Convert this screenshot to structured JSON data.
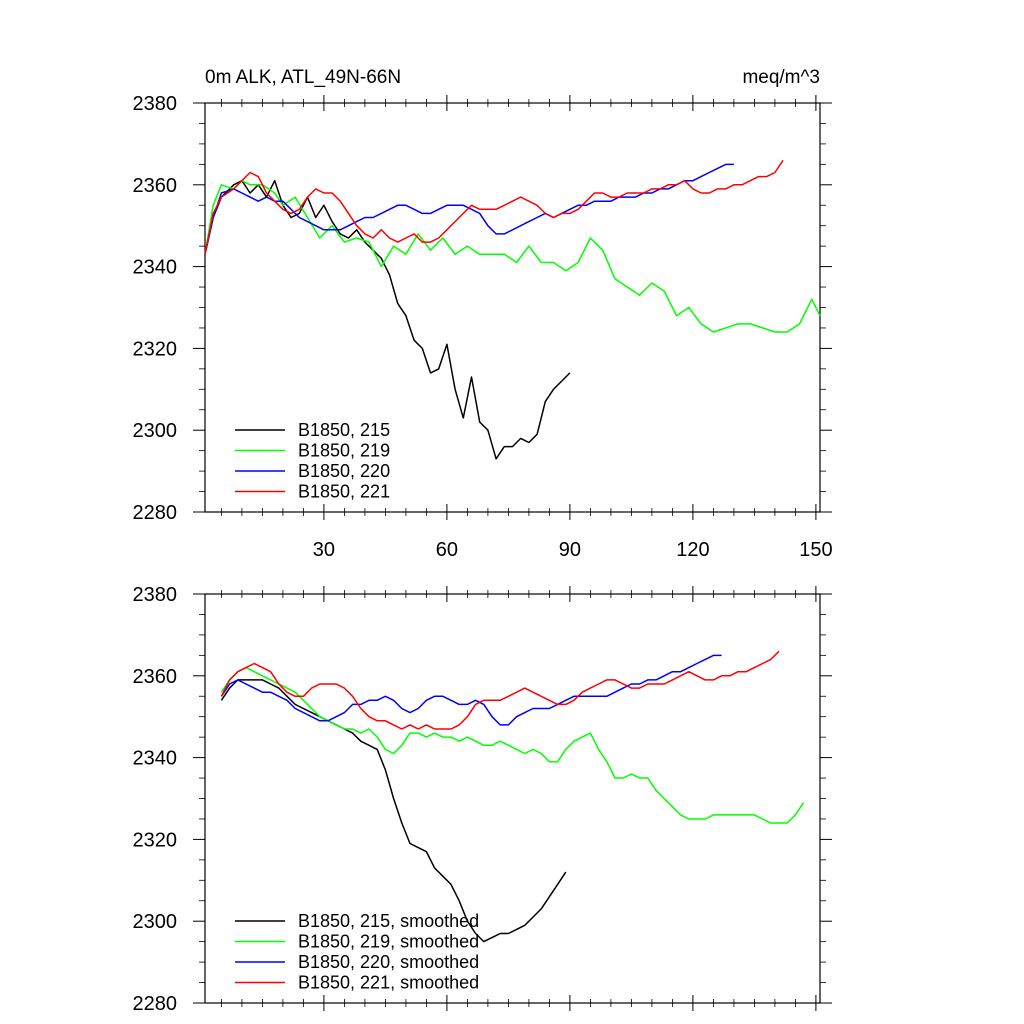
{
  "chart_data": [
    {
      "type": "line",
      "title_left": "0m ALK, ATL_49N-66N",
      "title_right": "meq/m^3",
      "xlim": [
        1,
        151
      ],
      "ylim": [
        2280,
        2380
      ],
      "xticks": [
        30,
        60,
        90,
        120,
        150
      ],
      "xtick_labels": [
        "30",
        "60",
        "90",
        "120",
        "150"
      ],
      "yticks": [
        2280,
        2300,
        2320,
        2340,
        2360,
        2380
      ],
      "ytick_labels": [
        "2280",
        "2300",
        "2320",
        "2340",
        "2360",
        "2380"
      ],
      "grid": false,
      "legend_position": "bottom-left",
      "series": [
        {
          "name": "B1850, 215",
          "color": "#000000",
          "x": [
            1,
            3,
            5,
            8,
            10,
            12,
            14,
            16,
            18,
            20,
            22,
            24,
            26,
            28,
            30,
            32,
            34,
            36,
            38,
            40,
            42,
            44,
            46,
            48,
            50,
            52,
            54,
            56,
            58,
            60,
            62,
            64,
            66,
            68,
            70,
            72,
            74,
            76,
            78,
            80,
            82,
            84,
            86,
            88,
            90
          ],
          "y": [
            2343,
            2352,
            2357,
            2360,
            2361,
            2358,
            2360,
            2357,
            2361,
            2355,
            2352,
            2353,
            2357,
            2352,
            2355,
            2351,
            2348,
            2347,
            2349,
            2346,
            2344,
            2342,
            2338,
            2331,
            2328,
            2322,
            2320,
            2314,
            2315,
            2321,
            2310,
            2303,
            2313,
            2302,
            2300,
            2293,
            2296,
            2296,
            2298,
            2297,
            2299,
            2307,
            2310,
            2312,
            2314
          ]
        },
        {
          "name": "B1850, 219",
          "color": "#00ff00",
          "x": [
            1,
            3,
            5,
            8,
            10,
            12,
            15,
            18,
            20,
            23,
            26,
            29,
            32,
            35,
            38,
            41,
            44,
            47,
            50,
            53,
            56,
            59,
            62,
            65,
            68,
            71,
            74,
            77,
            80,
            83,
            86,
            89,
            92,
            95,
            98,
            101,
            104,
            107,
            110,
            113,
            116,
            119,
            122,
            125,
            128,
            131,
            134,
            137,
            140,
            143,
            146,
            149,
            151
          ],
          "y": [
            2343,
            2355,
            2360,
            2359,
            2361,
            2360,
            2360,
            2358,
            2355,
            2357,
            2352,
            2347,
            2350,
            2346,
            2347,
            2346,
            2340,
            2345,
            2343,
            2348,
            2344,
            2347,
            2343,
            2345,
            2343,
            2343,
            2343,
            2341,
            2345,
            2341,
            2341,
            2339,
            2341,
            2347,
            2344,
            2337,
            2335,
            2333,
            2336,
            2334,
            2328,
            2330,
            2326,
            2324,
            2325,
            2326,
            2326,
            2325,
            2324,
            2324,
            2326,
            2332,
            2328
          ]
        },
        {
          "name": "B1850, 220",
          "color": "#0000ff",
          "x": [
            1,
            3,
            5,
            8,
            10,
            12,
            14,
            16,
            18,
            20,
            22,
            24,
            26,
            28,
            30,
            32,
            34,
            36,
            38,
            40,
            42,
            44,
            46,
            48,
            50,
            52,
            54,
            56,
            58,
            60,
            62,
            64,
            66,
            68,
            70,
            72,
            74,
            76,
            78,
            80,
            82,
            84,
            86,
            88,
            90,
            92,
            94,
            96,
            98,
            100,
            102,
            104,
            106,
            108,
            110,
            112,
            114,
            116,
            118,
            120,
            122,
            124,
            126,
            128,
            130
          ],
          "y": [
            2343,
            2352,
            2358,
            2359,
            2358,
            2357,
            2356,
            2357,
            2356,
            2356,
            2354,
            2352,
            2351,
            2350,
            2349,
            2349,
            2349,
            2350,
            2351,
            2352,
            2352,
            2353,
            2354,
            2355,
            2355,
            2354,
            2353,
            2353,
            2354,
            2355,
            2355,
            2355,
            2354,
            2353,
            2350,
            2348,
            2348,
            2349,
            2350,
            2351,
            2352,
            2353,
            2352,
            2353,
            2354,
            2355,
            2355,
            2356,
            2356,
            2356,
            2357,
            2357,
            2357,
            2358,
            2358,
            2359,
            2359,
            2360,
            2361,
            2361,
            2362,
            2363,
            2364,
            2365,
            2365
          ]
        },
        {
          "name": "B1850, 221",
          "color": "#ff0000",
          "x": [
            1,
            3,
            5,
            8,
            10,
            12,
            14,
            16,
            18,
            20,
            22,
            24,
            26,
            28,
            30,
            32,
            34,
            36,
            38,
            40,
            42,
            44,
            46,
            48,
            50,
            52,
            54,
            56,
            58,
            60,
            62,
            64,
            66,
            68,
            70,
            72,
            74,
            76,
            78,
            80,
            82,
            84,
            86,
            88,
            90,
            92,
            94,
            96,
            98,
            100,
            102,
            104,
            106,
            108,
            110,
            112,
            114,
            116,
            118,
            120,
            122,
            124,
            126,
            128,
            130,
            132,
            134,
            136,
            138,
            140,
            142
          ],
          "y": [
            2343,
            2353,
            2357,
            2359,
            2361,
            2363,
            2362,
            2358,
            2356,
            2354,
            2353,
            2354,
            2357,
            2359,
            2358,
            2358,
            2356,
            2353,
            2350,
            2348,
            2347,
            2349,
            2347,
            2346,
            2347,
            2348,
            2346,
            2346,
            2347,
            2349,
            2351,
            2353,
            2355,
            2354,
            2354,
            2354,
            2355,
            2356,
            2357,
            2356,
            2355,
            2353,
            2352,
            2353,
            2353,
            2354,
            2356,
            2358,
            2358,
            2357,
            2357,
            2358,
            2358,
            2358,
            2359,
            2359,
            2360,
            2360,
            2361,
            2359,
            2358,
            2358,
            2359,
            2359,
            2360,
            2360,
            2361,
            2362,
            2362,
            2363,
            2366
          ]
        }
      ]
    },
    {
      "type": "line",
      "xlim": [
        1,
        151
      ],
      "ylim": [
        2280,
        2380
      ],
      "xticks": [
        30,
        60,
        90,
        120,
        150
      ],
      "yticks": [
        2280,
        2300,
        2320,
        2340,
        2360,
        2380
      ],
      "ytick_labels": [
        "2280",
        "2300",
        "2320",
        "2340",
        "2360",
        "2380"
      ],
      "grid": false,
      "legend_position": "bottom-left",
      "series": [
        {
          "name": "B1850, 215, smoothed",
          "color": "#000000",
          "x": [
            5,
            7,
            9,
            11,
            13,
            15,
            17,
            19,
            21,
            23,
            25,
            27,
            29,
            31,
            33,
            35,
            37,
            39,
            41,
            43,
            45,
            47,
            49,
            51,
            53,
            55,
            57,
            59,
            61,
            63,
            65,
            67,
            69,
            71,
            73,
            75,
            77,
            79,
            81,
            83,
            85,
            87,
            89
          ],
          "y": [
            2354,
            2357,
            2359,
            2359,
            2359,
            2359,
            2358,
            2357,
            2355,
            2353,
            2352,
            2351,
            2350,
            2349,
            2348,
            2347,
            2346,
            2344,
            2343,
            2342,
            2337,
            2330,
            2324,
            2319,
            2318,
            2317,
            2313,
            2311,
            2309,
            2305,
            2300,
            2297,
            2295,
            2296,
            2297,
            2297,
            2298,
            2299,
            2301,
            2303,
            2306,
            2309,
            2312
          ]
        },
        {
          "name": "B1850, 219, smoothed",
          "color": "#00ff00",
          "x": [
            5,
            7,
            9,
            11,
            13,
            15,
            17,
            19,
            21,
            23,
            25,
            27,
            29,
            31,
            33,
            35,
            37,
            39,
            41,
            43,
            45,
            47,
            49,
            51,
            53,
            55,
            57,
            59,
            61,
            63,
            65,
            67,
            69,
            71,
            73,
            75,
            77,
            79,
            81,
            83,
            85,
            87,
            89,
            91,
            93,
            95,
            97,
            99,
            101,
            103,
            105,
            107,
            109,
            111,
            113,
            115,
            117,
            119,
            121,
            123,
            125,
            127,
            129,
            131,
            133,
            135,
            137,
            139,
            141,
            143,
            145,
            147
          ],
          "y": [
            2356,
            2359,
            2361,
            2362,
            2361,
            2360,
            2359,
            2358,
            2357,
            2356,
            2354,
            2352,
            2350,
            2349,
            2348,
            2347,
            2347,
            2346,
            2347,
            2345,
            2342,
            2341,
            2343,
            2346,
            2346,
            2345,
            2346,
            2345,
            2345,
            2344,
            2345,
            2344,
            2343,
            2343,
            2344,
            2343,
            2342,
            2341,
            2342,
            2341,
            2339,
            2339,
            2342,
            2344,
            2345,
            2346,
            2342,
            2339,
            2335,
            2335,
            2336,
            2335,
            2335,
            2332,
            2330,
            2328,
            2326,
            2325,
            2325,
            2325,
            2326,
            2326,
            2326,
            2326,
            2326,
            2326,
            2325,
            2324,
            2324,
            2324,
            2326,
            2329
          ]
        },
        {
          "name": "B1850, 220, smoothed",
          "color": "#0000ff",
          "x": [
            5,
            7,
            9,
            11,
            13,
            15,
            17,
            19,
            21,
            23,
            25,
            27,
            29,
            31,
            33,
            35,
            37,
            39,
            41,
            43,
            45,
            47,
            49,
            51,
            53,
            55,
            57,
            59,
            61,
            63,
            65,
            67,
            69,
            71,
            73,
            75,
            77,
            79,
            81,
            83,
            85,
            87,
            89,
            91,
            93,
            95,
            97,
            99,
            101,
            103,
            105,
            107,
            109,
            111,
            113,
            115,
            117,
            119,
            121,
            123,
            125,
            127
          ],
          "y": [
            2355,
            2358,
            2359,
            2358,
            2357,
            2356,
            2356,
            2355,
            2354,
            2352,
            2351,
            2350,
            2349,
            2349,
            2350,
            2351,
            2353,
            2353,
            2354,
            2354,
            2355,
            2354,
            2352,
            2351,
            2352,
            2354,
            2355,
            2355,
            2354,
            2353,
            2353,
            2354,
            2353,
            2350,
            2348,
            2348,
            2350,
            2351,
            2352,
            2352,
            2352,
            2353,
            2354,
            2355,
            2355,
            2355,
            2355,
            2355,
            2356,
            2357,
            2358,
            2358,
            2359,
            2359,
            2360,
            2361,
            2361,
            2362,
            2363,
            2364,
            2365,
            2365
          ]
        },
        {
          "name": "B1850, 221, smoothed",
          "color": "#ff0000",
          "x": [
            5,
            7,
            9,
            11,
            13,
            15,
            17,
            19,
            21,
            23,
            25,
            27,
            29,
            31,
            33,
            35,
            37,
            39,
            41,
            43,
            45,
            47,
            49,
            51,
            53,
            55,
            57,
            59,
            61,
            63,
            65,
            67,
            69,
            71,
            73,
            75,
            77,
            79,
            81,
            83,
            85,
            87,
            89,
            91,
            93,
            95,
            97,
            99,
            101,
            103,
            105,
            107,
            109,
            111,
            113,
            115,
            117,
            119,
            121,
            123,
            125,
            127,
            129,
            131,
            133,
            135,
            137,
            139,
            141
          ],
          "y": [
            2355,
            2359,
            2361,
            2362,
            2363,
            2362,
            2361,
            2358,
            2356,
            2355,
            2355,
            2357,
            2358,
            2358,
            2358,
            2357,
            2355,
            2352,
            2350,
            2349,
            2349,
            2348,
            2347,
            2348,
            2347,
            2348,
            2347,
            2347,
            2347,
            2348,
            2350,
            2353,
            2354,
            2354,
            2354,
            2355,
            2356,
            2357,
            2356,
            2355,
            2354,
            2353,
            2353,
            2354,
            2356,
            2357,
            2358,
            2359,
            2359,
            2358,
            2357,
            2357,
            2358,
            2358,
            2358,
            2359,
            2360,
            2361,
            2360,
            2359,
            2359,
            2360,
            2360,
            2361,
            2361,
            2362,
            2363,
            2364,
            2366
          ]
        }
      ]
    }
  ]
}
